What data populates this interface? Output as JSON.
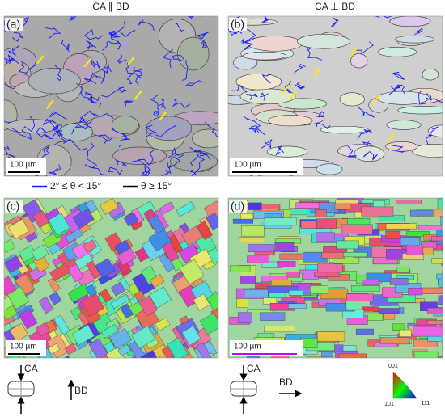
{
  "columns": [
    "CA ∥ BD",
    "CA ⊥ BD"
  ],
  "panels": [
    {
      "label": "(a)",
      "scale_bar": "100 µm"
    },
    {
      "label": "(b)",
      "scale_bar": "100 µm"
    },
    {
      "label": "(c)",
      "scale_bar": "100 µm"
    },
    {
      "label": "(d)",
      "scale_bar": "100 µm"
    }
  ],
  "legend": [
    "2° ≤ θ < 15°",
    "θ ≥ 15°"
  ],
  "sketch_left": {
    "load": "CA",
    "direction": "BD"
  },
  "sketch_right": {
    "load": "CA",
    "direction": "BD"
  },
  "ipf_triangle": {
    "corners": [
      "001",
      "101",
      "111"
    ]
  }
}
